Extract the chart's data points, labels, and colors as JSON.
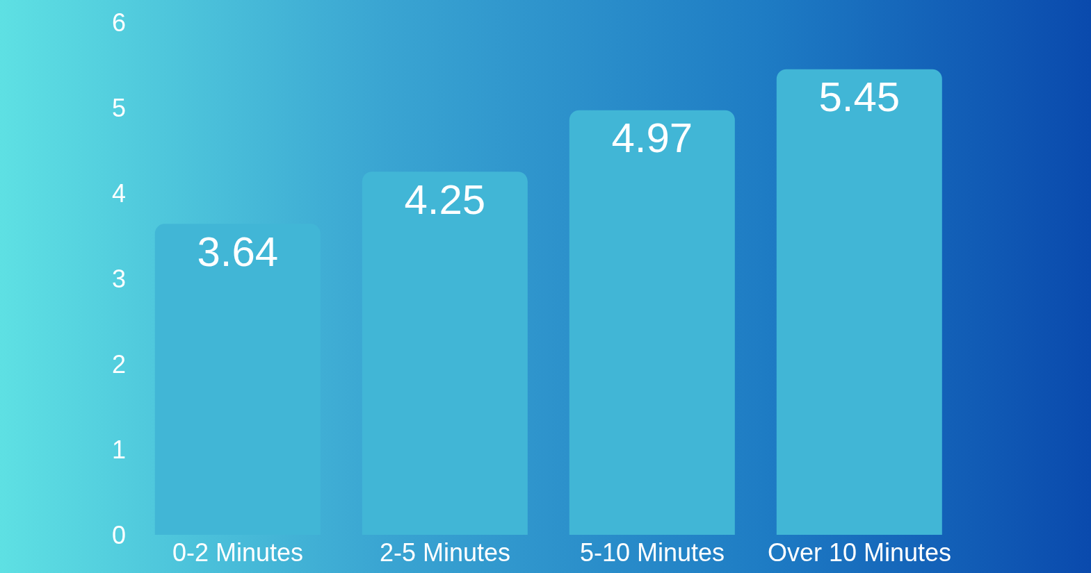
{
  "chart_data": {
    "type": "bar",
    "categories": [
      "0-2 Minutes",
      "2-5 Minutes",
      "5-10 Minutes",
      "Over 10 Minutes"
    ],
    "values": [
      3.64,
      4.25,
      4.97,
      5.45
    ],
    "color": "#41b6d6",
    "ylim": [
      0,
      6
    ],
    "yticks": [
      0,
      1,
      2,
      3,
      4,
      5,
      6
    ],
    "data_labels": true
  }
}
